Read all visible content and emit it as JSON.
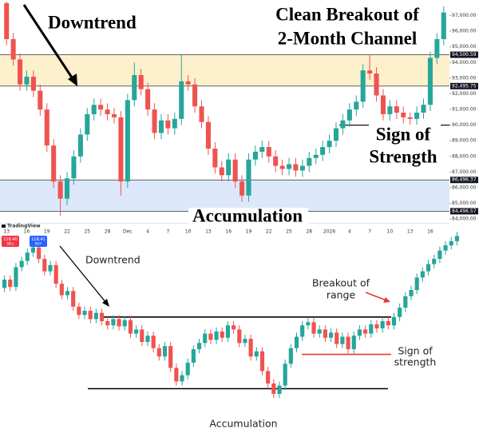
{
  "chart_data": [
    {
      "type": "candlestick",
      "categories": [
        "13",
        null,
        null,
        "16",
        null,
        null,
        "19",
        null,
        null,
        "22",
        null,
        null,
        "25",
        null,
        null,
        "28",
        null,
        null,
        "Dec",
        null,
        null,
        "4",
        null,
        null,
        "7",
        null,
        null,
        "10",
        null,
        null,
        "13",
        null,
        null,
        "16",
        null,
        null,
        "19",
        null,
        null,
        "22",
        null,
        null,
        "25",
        null,
        null,
        "28",
        null,
        null,
        "2026",
        null,
        null,
        "4",
        null,
        null,
        "7",
        null,
        null,
        "10",
        null,
        null,
        "13",
        null,
        null,
        "16",
        null,
        null
      ],
      "open": [
        97800,
        95500,
        94200,
        92600,
        93100,
        92200,
        91000,
        88700,
        86400,
        85300,
        86600,
        88000,
        89400,
        90700,
        91300,
        91000,
        90700,
        90500,
        86400,
        91600,
        93200,
        92300,
        91000,
        89500,
        90300,
        89800,
        90400,
        92800,
        92600,
        91200,
        90200,
        88500,
        87300,
        86800,
        87800,
        86400,
        85500,
        87800,
        88300,
        88600,
        88000,
        87400,
        87200,
        87500,
        87100,
        87400,
        87900,
        88100,
        88600,
        89000,
        89800,
        90300,
        91000,
        91500,
        93500,
        93300,
        91900,
        90700,
        91200,
        90800,
        90500,
        90400,
        90800,
        91300,
        94300,
        95500
      ],
      "high": [
        97900,
        95900,
        94600,
        93500,
        93500,
        92600,
        91400,
        89100,
        86800,
        87000,
        88400,
        89800,
        91100,
        91700,
        91700,
        91400,
        91100,
        90900,
        92000,
        94000,
        93600,
        92700,
        91400,
        90700,
        90700,
        90800,
        94500,
        93200,
        93000,
        91600,
        90600,
        88900,
        87700,
        88200,
        88200,
        86800,
        88200,
        88700,
        89000,
        89000,
        88400,
        87800,
        87900,
        87900,
        87800,
        88300,
        88500,
        89000,
        89400,
        90200,
        90700,
        91400,
        91900,
        93900,
        94500,
        93700,
        92300,
        91600,
        91600,
        91200,
        90800,
        91200,
        91700,
        94700,
        95900,
        97600
      ],
      "low": [
        95100,
        93800,
        92200,
        92200,
        91800,
        90600,
        88300,
        86000,
        84200,
        84900,
        86200,
        87600,
        89000,
        90300,
        90600,
        90300,
        90100,
        85500,
        86000,
        91200,
        91900,
        90600,
        89100,
        89100,
        89400,
        89400,
        90000,
        92200,
        90800,
        89800,
        88100,
        86900,
        86400,
        86400,
        86000,
        85100,
        85100,
        87400,
        87900,
        87600,
        87000,
        86800,
        86800,
        86700,
        86700,
        87000,
        87500,
        87700,
        88200,
        88600,
        89400,
        89900,
        90600,
        91100,
        92900,
        91500,
        90300,
        90300,
        90400,
        90100,
        90000,
        90000,
        90400,
        90900,
        93900,
        95100
      ],
      "close": [
        95500,
        94200,
        92600,
        93100,
        92200,
        91000,
        88700,
        86400,
        85300,
        86600,
        88000,
        89400,
        90700,
        91300,
        91000,
        90700,
        90500,
        86400,
        91600,
        93200,
        92300,
        91000,
        89500,
        90300,
        89800,
        90400,
        92800,
        92600,
        91200,
        90200,
        88500,
        87300,
        86800,
        87800,
        86400,
        85500,
        87800,
        88300,
        88600,
        88000,
        87400,
        87200,
        87500,
        87100,
        87400,
        87900,
        88100,
        88600,
        89000,
        89800,
        90300,
        91000,
        91500,
        93500,
        93300,
        91900,
        90700,
        91200,
        90800,
        90500,
        90400,
        90800,
        91300,
        94300,
        95500,
        97200
      ],
      "up_color": "#26a69a",
      "down_color": "#ef5350",
      "ylim": [
        83700,
        98000
      ],
      "yticks": [
        {
          "value": 97000,
          "label": "97,000.00"
        },
        {
          "value": 96000,
          "label": "96,000.00"
        },
        {
          "value": 95000,
          "label": "95,000.00"
        },
        {
          "value": 94000,
          "label": "94,000.00"
        },
        {
          "value": 93000,
          "label": "93,000.00"
        },
        {
          "value": 92000,
          "label": "92,000.00"
        },
        {
          "value": 91000,
          "label": "91,000.00"
        },
        {
          "value": 90000,
          "label": "90,000.00"
        },
        {
          "value": 89000,
          "label": "89,000.00"
        },
        {
          "value": 88000,
          "label": "88,000.00"
        },
        {
          "value": 87000,
          "label": "87,000.00"
        },
        {
          "value": 86000,
          "label": "86,000.00"
        },
        {
          "value": 85000,
          "label": "85,000.00"
        },
        {
          "value": 84000,
          "label": "84,000.00"
        }
      ],
      "levels": [
        {
          "value": 94500.59,
          "label": "94,500.59"
        },
        {
          "value": 92495.75,
          "label": "92,495.75"
        },
        {
          "value": 86496.37,
          "label": "86,496.37"
        },
        {
          "value": 84496.57,
          "label": "84,496.57"
        }
      ],
      "zone_colors": [
        "#fdf0cc",
        "#dce8fa"
      ],
      "support_line": 90000,
      "annotations": [
        "Downtrend",
        "Clean Breakout of",
        "2-Month Channel",
        "Sign of",
        "Strength",
        "Accumulation"
      ]
    },
    {
      "type": "candlestick",
      "brand": "TradingView",
      "badges": [
        {
          "value": 118.4,
          "label": "118.40",
          "side": "SELL",
          "color": "#f23645"
        },
        {
          "value": 118.41,
          "label": "118.41",
          "side": "BUY",
          "color": "#2962ff"
        }
      ],
      "open": [
        114.2,
        115.0,
        114.3,
        116.2,
        116.8,
        117.6,
        118.1,
        117.0,
        115.8,
        116.4,
        114.6,
        113.5,
        113.9,
        112.4,
        111.6,
        112.0,
        111.2,
        111.8,
        111.0,
        110.6,
        111.2,
        110.5,
        111.1,
        109.8,
        110.2,
        109.0,
        109.6,
        108.4,
        107.6,
        108.6,
        106.5,
        105.2,
        105.8,
        107.0,
        108.3,
        108.9,
        109.8,
        109.2,
        110.0,
        109.4,
        110.6,
        110.2,
        108.9,
        109.3,
        107.6,
        108.1,
        106.2,
        105.0,
        104.0,
        104.8,
        106.9,
        108.4,
        109.5,
        110.6,
        110.9,
        109.8,
        110.2,
        109.4,
        109.9,
        108.8,
        109.5,
        108.3,
        109.6,
        110.2,
        109.8,
        110.7,
        110.3,
        111.0,
        110.6,
        111.4,
        112.3,
        113.4,
        114.0,
        115.2,
        115.8,
        116.5,
        117.0,
        117.8,
        118.3,
        118.7
      ],
      "high": [
        115.4,
        115.4,
        116.6,
        117.2,
        118.0,
        118.5,
        118.5,
        117.4,
        116.8,
        116.8,
        115.0,
        114.3,
        114.3,
        112.8,
        112.4,
        112.4,
        112.2,
        112.2,
        111.4,
        111.6,
        111.6,
        111.5,
        111.5,
        110.6,
        110.6,
        110.0,
        110.0,
        108.8,
        109.0,
        109.0,
        106.9,
        106.2,
        107.4,
        108.7,
        109.3,
        110.2,
        110.2,
        110.4,
        110.4,
        111.0,
        111.0,
        110.6,
        109.7,
        109.7,
        108.5,
        108.5,
        106.6,
        105.4,
        105.2,
        107.3,
        108.8,
        109.9,
        111.0,
        111.3,
        111.3,
        110.6,
        110.6,
        110.3,
        110.3,
        109.9,
        109.9,
        110.0,
        110.6,
        110.6,
        111.1,
        111.1,
        111.4,
        111.4,
        111.8,
        112.7,
        113.8,
        114.4,
        115.6,
        116.2,
        116.9,
        117.4,
        118.2,
        118.7,
        119.1,
        119.6
      ],
      "low": [
        113.8,
        113.9,
        113.9,
        115.8,
        116.4,
        117.2,
        116.6,
        115.4,
        115.4,
        114.2,
        113.1,
        113.1,
        112.0,
        111.2,
        111.2,
        110.8,
        110.8,
        110.6,
        110.2,
        110.2,
        110.1,
        110.1,
        109.4,
        109.4,
        108.6,
        108.6,
        108.0,
        107.2,
        107.2,
        106.1,
        104.8,
        104.8,
        105.4,
        106.6,
        107.9,
        108.5,
        108.8,
        108.8,
        109.0,
        109.0,
        109.8,
        108.5,
        108.5,
        107.2,
        107.2,
        105.8,
        104.6,
        103.6,
        103.6,
        104.4,
        106.5,
        108.0,
        109.1,
        110.2,
        109.4,
        109.4,
        109.0,
        109.0,
        108.4,
        108.4,
        107.9,
        107.9,
        109.2,
        109.4,
        109.4,
        109.9,
        109.9,
        110.2,
        110.2,
        111.0,
        111.9,
        113.0,
        113.6,
        114.8,
        115.4,
        116.1,
        116.6,
        117.4,
        117.9,
        118.3
      ],
      "close": [
        115.0,
        114.3,
        116.2,
        116.8,
        117.6,
        118.1,
        117.0,
        115.8,
        116.4,
        114.6,
        113.5,
        113.9,
        112.4,
        111.6,
        112.0,
        111.2,
        111.8,
        111.0,
        110.6,
        111.2,
        110.5,
        111.1,
        109.8,
        110.2,
        109.0,
        109.6,
        108.4,
        107.6,
        108.6,
        106.5,
        105.2,
        105.8,
        107.0,
        108.3,
        108.9,
        109.8,
        109.2,
        110.0,
        109.4,
        110.6,
        110.2,
        108.9,
        109.3,
        107.6,
        108.1,
        106.2,
        105.0,
        104.0,
        104.8,
        106.9,
        108.4,
        109.5,
        110.6,
        110.9,
        109.8,
        110.2,
        109.4,
        109.9,
        108.8,
        109.5,
        108.3,
        109.6,
        110.2,
        109.8,
        110.7,
        110.3,
        111.0,
        110.6,
        111.4,
        112.3,
        113.4,
        114.0,
        115.2,
        115.8,
        116.5,
        117.0,
        117.8,
        118.3,
        118.7,
        119.2
      ],
      "up_color": "#26a69a",
      "down_color": "#ef5350",
      "ylim": [
        100,
        120
      ],
      "lines": [
        {
          "value": 111.4,
          "color": "#000000"
        },
        {
          "value": 104.5,
          "color": "#000000"
        },
        {
          "value": 107.8,
          "color": "#e53935"
        }
      ],
      "annotations": [
        [
          "Downtrend"
        ],
        [
          "Breakout of",
          "range"
        ],
        [
          "Sign of",
          "strength"
        ],
        [
          "Accumulation"
        ]
      ]
    }
  ]
}
